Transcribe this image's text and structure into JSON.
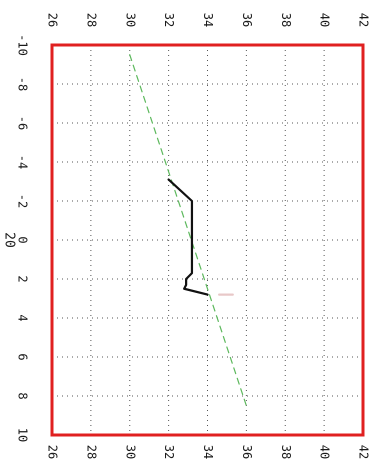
{
  "chart_data": {
    "type": "line",
    "orientation": "rotated 90 degrees clockwise",
    "xlabel": "20",
    "ylabel": "",
    "xlim": [
      -10,
      10
    ],
    "ylim": [
      26,
      42
    ],
    "x_ticks": [
      "-10",
      "-8",
      "-6",
      "-4",
      "-2",
      "0",
      "2",
      "4",
      "6",
      "8",
      "10"
    ],
    "y_ticks": [
      "26",
      "28",
      "30",
      "32",
      "34",
      "36",
      "38",
      "40",
      "42"
    ],
    "grid": true,
    "grid_style": "dotted",
    "frame_color": "#e02020",
    "series": [
      {
        "style": "dashed",
        "color": "#5cb85c",
        "points": [
          [
            -9.5,
            30.0
          ],
          [
            8.5,
            36.0
          ]
        ]
      },
      {
        "style": "solid",
        "color": "#111111",
        "points": [
          [
            -3.1,
            32.0
          ],
          [
            -2.0,
            33.2
          ],
          [
            1.7,
            33.2
          ],
          [
            2.0,
            32.9
          ],
          [
            2.3,
            32.9
          ],
          [
            2.5,
            32.8
          ],
          [
            2.8,
            34.0
          ]
        ]
      },
      {
        "style": "solid",
        "color": "#e8c8c8",
        "points": [
          [
            2.8,
            34.6
          ],
          [
            2.8,
            35.3
          ]
        ]
      }
    ]
  }
}
